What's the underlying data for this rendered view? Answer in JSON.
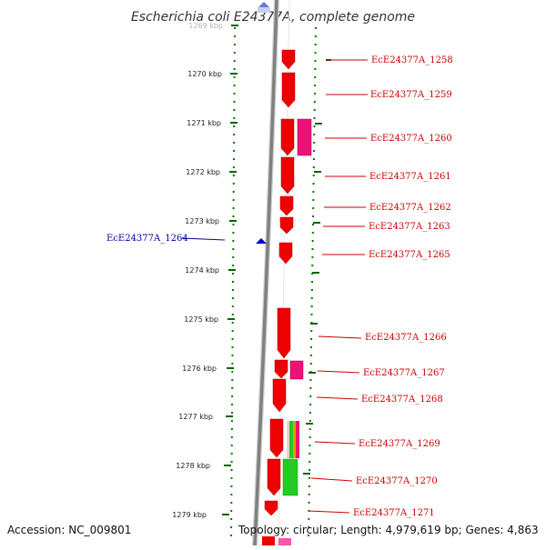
{
  "title": "Escherichia coli E24377A, complete genome",
  "accession_text": "Accession: NC_009801",
  "topology_text": "Topology: circular; Length: 4,979,619 bp; Genes: 4,863",
  "colors": {
    "backbone": "#808080",
    "tick": "#006600",
    "cds": "#ee0000",
    "pink": "#ee1177",
    "green": "#22cc22",
    "neg_strand": "#0000cc"
  },
  "ticks": [
    "1269 kbp",
    "1270 kbp",
    "1271 kbp",
    "1272 kbp",
    "1273 kbp",
    "1274 kbp",
    "1275 kbp",
    "1276 kbp",
    "1277 kbp",
    "1278 kbp",
    "1279 kbp"
  ],
  "genes_plus": [
    "EcE24377A_1258",
    "EcE24377A_1259",
    "EcE24377A_1260",
    "EcE24377A_1261",
    "EcE24377A_1262",
    "EcE24377A_1263",
    "EcE24377A_1265",
    "EcE24377A_1266",
    "EcE24377A_1267",
    "EcE24377A_1268",
    "EcE24377A_1269",
    "EcE24377A_1270",
    "EcE24377A_1271"
  ],
  "genes_minus": [
    "EcE24377A_1264"
  ]
}
